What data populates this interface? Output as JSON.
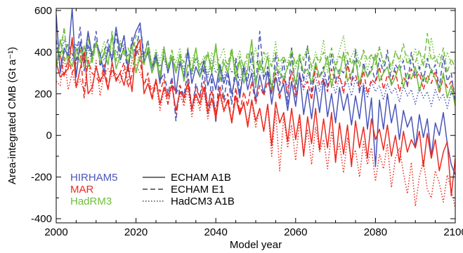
{
  "chart_data": {
    "type": "line",
    "xlabel": "Model year",
    "ylabel": "Area-integrated CMB (Gt a⁻¹)",
    "xlim": [
      2000,
      2100
    ],
    "ylim": [
      -420,
      610
    ],
    "xticks": [
      2000,
      2020,
      2040,
      2060,
      2080,
      2100
    ],
    "yticks": [
      -400,
      -200,
      0,
      200,
      400,
      600
    ],
    "grid": false,
    "legend_position": "bottom-left",
    "models": [
      {
        "name": "HIRHAM5",
        "color": "#4a56b8"
      },
      {
        "name": "MAR",
        "color": "#ec2a20"
      },
      {
        "name": "HadRM3",
        "color": "#6fbe3b"
      }
    ],
    "scenarios": [
      {
        "name": "ECHAM A1B",
        "dash": "solid"
      },
      {
        "name": "ECHAM E1",
        "dash": "dashed"
      },
      {
        "name": "HadCM3 A1B",
        "dash": "dotted"
      }
    ],
    "x_start": 2000,
    "series": [
      {
        "model": "HIRHAM5",
        "scenario": "ECHAM A1B",
        "values": [
          580,
          300,
          420,
          380,
          610,
          280,
          450,
          350,
          500,
          380,
          450,
          390,
          300,
          420,
          360,
          520,
          400,
          480,
          320,
          440,
          500,
          540,
          350,
          400,
          300,
          380,
          250,
          420,
          300,
          380,
          200,
          350,
          280,
          410,
          250,
          330,
          280,
          360,
          240,
          300,
          220,
          340,
          250,
          310,
          200,
          290,
          180,
          330,
          220,
          300,
          170,
          290,
          200,
          310,
          150,
          280,
          200,
          250,
          120,
          260,
          140,
          300,
          100,
          220,
          80,
          240,
          110,
          270,
          90,
          200,
          60,
          230,
          120,
          200,
          50,
          190,
          80,
          240,
          30,
          180,
          -150,
          170,
          30,
          200,
          60,
          150,
          -20,
          120,
          40,
          90,
          -60,
          100,
          -10,
          80,
          -100,
          60,
          0,
          110,
          -40,
          -140,
          -190
        ]
      },
      {
        "model": "MAR",
        "scenario": "ECHAM A1B",
        "values": [
          350,
          280,
          300,
          320,
          470,
          230,
          320,
          400,
          200,
          230,
          330,
          260,
          300,
          220,
          350,
          260,
          300,
          240,
          340,
          210,
          420,
          460,
          200,
          250,
          180,
          270,
          150,
          230,
          190,
          240,
          120,
          210,
          180,
          250,
          130,
          200,
          150,
          230,
          110,
          180,
          80,
          210,
          120,
          170,
          60,
          190,
          100,
          160,
          40,
          170,
          70,
          130,
          20,
          150,
          -50,
          160,
          60,
          110,
          -30,
          130,
          -20,
          100,
          -100,
          90,
          -40,
          130,
          -70,
          80,
          -60,
          110,
          -130,
          60,
          -90,
          50,
          -150,
          70,
          -60,
          40,
          -110,
          80,
          -20,
          30,
          -70,
          50,
          -100,
          0,
          -130,
          20,
          -80,
          -20,
          -60,
          20,
          -150,
          10,
          -110,
          -20,
          -170,
          -80,
          -30,
          -290,
          -110
        ]
      },
      {
        "model": "HadRM3",
        "scenario": "ECHAM A1B",
        "values": [
          330,
          460,
          360,
          380,
          330,
          420,
          350,
          430,
          330,
          370,
          450,
          350,
          400,
          340,
          480,
          320,
          380,
          410,
          350,
          430,
          300,
          380,
          340,
          420,
          300,
          360,
          280,
          420,
          320,
          380,
          300,
          390,
          260,
          340,
          310,
          420,
          280,
          330,
          390,
          300,
          440,
          260,
          350,
          300,
          410,
          270,
          360,
          250,
          320,
          460,
          240,
          360,
          300,
          380,
          220,
          330,
          300,
          270,
          330,
          360,
          240,
          380,
          300,
          320,
          250,
          350,
          280,
          310,
          380,
          230,
          330,
          290,
          400,
          260,
          300,
          360,
          250,
          330,
          280,
          310,
          390,
          260,
          300,
          330,
          240,
          280,
          340,
          230,
          300,
          270,
          330,
          210,
          290,
          250,
          320,
          270,
          210,
          300,
          180,
          240,
          140
        ]
      },
      {
        "model": "HIRHAM5",
        "scenario": "ECHAM E1",
        "values": [
          460,
          330,
          400,
          440,
          390,
          360,
          520,
          310,
          440,
          370,
          500,
          330,
          400,
          460,
          350,
          490,
          360,
          420,
          300,
          470,
          380,
          540,
          380,
          460,
          320,
          400,
          260,
          300,
          200,
          280,
          70,
          240,
          190,
          310,
          120,
          250,
          180,
          330,
          100,
          280,
          60,
          340,
          170,
          290,
          150,
          370,
          200,
          320,
          260,
          400,
          230,
          500,
          270,
          330,
          200,
          390,
          240,
          360,
          150,
          420,
          210,
          380,
          260,
          430,
          200,
          350,
          280,
          330,
          230,
          390,
          260,
          320,
          300,
          360,
          240,
          410,
          200,
          350,
          280,
          330,
          260,
          370,
          300,
          410,
          250,
          340,
          310,
          360,
          230,
          400,
          280,
          330,
          260,
          370,
          300,
          340,
          230,
          380,
          260,
          300,
          150
        ]
      },
      {
        "model": "MAR",
        "scenario": "ECHAM E1",
        "values": [
          330,
          390,
          280,
          370,
          300,
          350,
          410,
          180,
          360,
          300,
          280,
          250,
          340,
          230,
          320,
          270,
          300,
          350,
          230,
          290,
          430,
          360,
          240,
          300,
          170,
          250,
          210,
          270,
          150,
          260,
          200,
          240,
          160,
          270,
          120,
          230,
          180,
          260,
          140,
          220,
          100,
          240,
          160,
          200,
          60,
          230,
          110,
          210,
          140,
          260,
          150,
          240,
          190,
          260,
          200,
          300,
          170,
          280,
          200,
          310,
          180,
          290,
          230,
          260,
          170,
          330,
          240,
          270,
          210,
          320,
          250,
          290,
          200,
          340,
          260,
          290,
          230,
          310,
          200,
          270,
          250,
          330,
          220,
          290,
          260,
          310,
          210,
          280,
          240,
          320,
          270,
          300,
          220,
          290,
          250,
          310,
          200,
          280,
          230,
          260,
          200
        ]
      },
      {
        "model": "HadRM3",
        "scenario": "ECHAM E1",
        "values": [
          350,
          380,
          520,
          320,
          450,
          380,
          400,
          330,
          480,
          350,
          440,
          390,
          420,
          340,
          500,
          360,
          450,
          380,
          420,
          370,
          480,
          410,
          380,
          450,
          330,
          400,
          300,
          380,
          330,
          410,
          310,
          390,
          350,
          420,
          300,
          380,
          340,
          360,
          400,
          320,
          420,
          310,
          370,
          340,
          420,
          300,
          380,
          330,
          400,
          350,
          360,
          320,
          400,
          370,
          330,
          400,
          350,
          380,
          320,
          410,
          340,
          390,
          360,
          420,
          330,
          380,
          350,
          400,
          340,
          420,
          330,
          380,
          360,
          400,
          340,
          390,
          330,
          410,
          360,
          390,
          340,
          420,
          350,
          380,
          330,
          400,
          360,
          440,
          340,
          380,
          350,
          410,
          330,
          490,
          360,
          380,
          330,
          420,
          300,
          370,
          320
        ]
      },
      {
        "model": "HIRHAM5",
        "scenario": "HadCM3 A1B",
        "values": [
          420,
          380,
          460,
          390,
          360,
          440,
          400,
          380,
          420,
          350,
          450,
          390,
          360,
          430,
          380,
          410,
          350,
          440,
          380,
          400,
          390,
          420,
          360,
          410,
          340,
          390,
          330,
          370,
          310,
          380,
          300,
          360,
          320,
          380,
          290,
          370,
          310,
          350,
          280,
          360,
          300,
          340,
          270,
          350,
          300,
          330,
          260,
          340,
          290,
          320,
          250,
          330,
          280,
          300,
          240,
          320,
          270,
          290,
          230,
          310,
          260,
          280,
          220,
          300,
          250,
          280,
          210,
          290,
          240,
          270,
          200,
          280,
          230,
          260,
          190,
          270,
          220,
          250,
          180,
          260,
          210,
          240,
          170,
          250,
          200,
          230,
          160,
          240,
          190,
          220,
          150,
          230,
          180,
          210,
          140,
          220,
          170,
          200,
          130,
          210,
          180
        ]
      },
      {
        "model": "MAR",
        "scenario": "HadCM3 A1B",
        "values": [
          260,
          240,
          380,
          220,
          300,
          230,
          270,
          210,
          380,
          200,
          360,
          190,
          300,
          320,
          280,
          300,
          250,
          320,
          260,
          360,
          340,
          300,
          250,
          270,
          220,
          260,
          120,
          220,
          150,
          240,
          100,
          200,
          140,
          230,
          90,
          190,
          120,
          220,
          80,
          170,
          130,
          200,
          110,
          160,
          70,
          180,
          100,
          150,
          60,
          160,
          40,
          130,
          20,
          140,
          -100,
          120,
          -170,
          90,
          -60,
          50,
          -120,
          70,
          -90,
          30,
          -140,
          40,
          -80,
          -20,
          -160,
          20,
          -100,
          -40,
          -180,
          -10,
          -120,
          -70,
          -200,
          -30,
          -140,
          -60,
          -220,
          -90,
          -160,
          -40,
          -250,
          -110,
          -60,
          -180,
          -280,
          -130,
          -340,
          -200,
          -120,
          -260,
          -300,
          -170,
          -230,
          -320,
          -190,
          -260,
          -350
        ]
      },
      {
        "model": "HadRM3",
        "scenario": "HadCM3 A1B",
        "values": [
          350,
          440,
          500,
          380,
          450,
          400,
          420,
          380,
          460,
          400,
          430,
          380,
          450,
          400,
          420,
          350,
          460,
          410,
          380,
          440,
          300,
          430,
          370,
          450,
          330,
          410,
          360,
          430,
          310,
          400,
          350,
          420,
          300,
          390,
          360,
          410,
          330,
          380,
          290,
          400,
          340,
          370,
          420,
          300,
          390,
          350,
          410,
          280,
          380,
          340,
          420,
          310,
          360,
          400,
          330,
          450,
          300,
          380,
          350,
          420,
          320,
          390,
          370,
          430,
          310,
          400,
          350,
          460,
          300,
          390,
          340,
          410,
          480,
          330,
          380,
          420,
          350,
          400,
          310,
          390,
          360,
          430,
          330,
          380,
          300,
          410,
          350,
          370,
          390,
          340,
          420,
          310,
          380,
          330,
          470,
          350,
          390,
          320,
          400,
          340,
          360
        ]
      }
    ]
  }
}
